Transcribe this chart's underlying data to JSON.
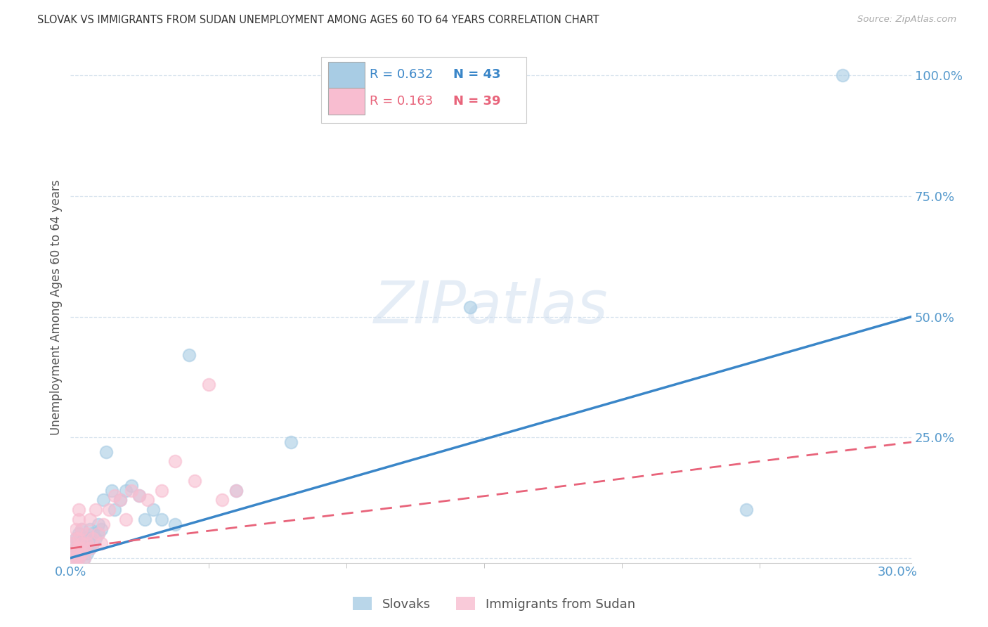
{
  "title": "SLOVAK VS IMMIGRANTS FROM SUDAN UNEMPLOYMENT AMONG AGES 60 TO 64 YEARS CORRELATION CHART",
  "source": "Source: ZipAtlas.com",
  "ylabel": "Unemployment Among Ages 60 to 64 years",
  "xlim": [
    0.0,
    0.305
  ],
  "ylim": [
    -0.01,
    1.05
  ],
  "xtick_major": [
    0.0,
    0.3
  ],
  "xticklabels": [
    "0.0%",
    "30.0%"
  ],
  "yticks": [
    0.0,
    0.25,
    0.5,
    0.75,
    1.0
  ],
  "yticklabels": [
    "",
    "25.0%",
    "50.0%",
    "75.0%",
    "100.0%"
  ],
  "blue_scatter": "#a8cce4",
  "pink_scatter": "#f8bdd0",
  "blue_line": "#3a86c8",
  "pink_line": "#e8637a",
  "axis_tick_color": "#5599cc",
  "grid_color": "#d8e4ee",
  "legend_R1": "R = 0.632",
  "legend_N1": "N = 43",
  "legend_R2": "R = 0.163",
  "legend_N2": "N = 39",
  "watermark": "ZIPatlas",
  "slovaks_x": [
    0.001,
    0.001,
    0.002,
    0.002,
    0.002,
    0.003,
    0.003,
    0.003,
    0.004,
    0.004,
    0.004,
    0.005,
    0.005,
    0.005,
    0.006,
    0.006,
    0.007,
    0.007,
    0.007,
    0.008,
    0.008,
    0.009,
    0.01,
    0.01,
    0.011,
    0.012,
    0.013,
    0.015,
    0.016,
    0.018,
    0.02,
    0.022,
    0.025,
    0.027,
    0.03,
    0.033,
    0.038,
    0.043,
    0.06,
    0.08,
    0.145,
    0.245,
    0.28
  ],
  "slovaks_y": [
    0.01,
    0.03,
    0.0,
    0.02,
    0.04,
    0.0,
    0.02,
    0.05,
    0.01,
    0.03,
    0.06,
    0.0,
    0.02,
    0.04,
    0.01,
    0.03,
    0.02,
    0.04,
    0.06,
    0.03,
    0.05,
    0.04,
    0.05,
    0.07,
    0.06,
    0.12,
    0.22,
    0.14,
    0.1,
    0.12,
    0.14,
    0.15,
    0.13,
    0.08,
    0.1,
    0.08,
    0.07,
    0.42,
    0.14,
    0.24,
    0.52,
    0.1,
    1.0
  ],
  "sudan_x": [
    0.001,
    0.001,
    0.001,
    0.002,
    0.002,
    0.002,
    0.002,
    0.003,
    0.003,
    0.003,
    0.003,
    0.003,
    0.004,
    0.004,
    0.004,
    0.005,
    0.005,
    0.006,
    0.006,
    0.007,
    0.007,
    0.008,
    0.009,
    0.01,
    0.011,
    0.012,
    0.014,
    0.016,
    0.018,
    0.02,
    0.022,
    0.025,
    0.028,
    0.033,
    0.038,
    0.045,
    0.05,
    0.055,
    0.06
  ],
  "sudan_y": [
    0.0,
    0.01,
    0.03,
    0.0,
    0.02,
    0.04,
    0.06,
    0.0,
    0.02,
    0.04,
    0.08,
    0.1,
    0.01,
    0.03,
    0.06,
    0.0,
    0.02,
    0.03,
    0.05,
    0.02,
    0.08,
    0.04,
    0.1,
    0.05,
    0.03,
    0.07,
    0.1,
    0.13,
    0.12,
    0.08,
    0.14,
    0.13,
    0.12,
    0.14,
    0.2,
    0.16,
    0.36,
    0.12,
    0.14
  ],
  "blue_line_x0": 0.0,
  "blue_line_y0": 0.0,
  "blue_line_x1": 0.305,
  "blue_line_y1": 0.5,
  "pink_line_x0": 0.0,
  "pink_line_y0": 0.02,
  "pink_line_x1": 0.305,
  "pink_line_y1": 0.24
}
